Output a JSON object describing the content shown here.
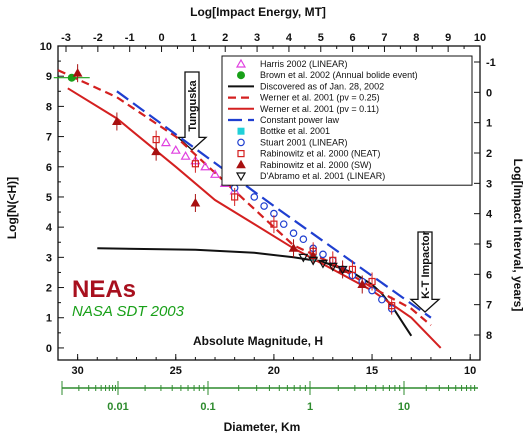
{
  "chart_data": {
    "type": "scatter",
    "title": "Log[Impact Energy, MT]",
    "xlabel": "Absolute Magnitude, H",
    "ylabel": "Log[N(<H)]",
    "ylabel_right": "Log[Impact Interval, years]",
    "xlabel_bottom": "Diameter, Km",
    "annotation_main": "NEAs",
    "annotation_sub": "NASA SDT 2003",
    "arrow_labels": [
      "Tunguska",
      "K-T Impactor"
    ],
    "xlim": [
      31,
      9.5
    ],
    "ylim": [
      -0.4,
      10
    ],
    "x_ticks": [
      "30",
      "25",
      "20",
      "15",
      "10"
    ],
    "y_ticks": [
      "0",
      "1",
      "2",
      "3",
      "4",
      "5",
      "6",
      "7",
      "8",
      "9",
      "10"
    ],
    "top_ticks": [
      "-3",
      "-2",
      "-1",
      "0",
      "1",
      "2",
      "3",
      "4",
      "5",
      "6",
      "7",
      "8",
      "9",
      "10"
    ],
    "right_ticks": [
      "-1",
      "0",
      "1",
      "2",
      "3",
      "4",
      "5",
      "6",
      "7",
      "8"
    ],
    "diameter_ticks": [
      "0.01",
      "0.1",
      "1",
      "10"
    ],
    "colors": {
      "green_axis": "#2e8b2e",
      "red": "#d42020",
      "blue": "#1f3fd0",
      "neas": "#a8101e",
      "magenta": "#e040e0",
      "green_point": "#19a019",
      "cyan": "#20d0d8"
    },
    "series": [
      {
        "name": "Harris 2002 (LINEAR)",
        "marker": "triangle-open",
        "color": "#e040e0",
        "x": [
          25.5,
          25,
          24.5,
          24,
          23.5,
          23,
          22.5,
          22
        ],
        "y": [
          6.8,
          6.55,
          6.35,
          6.2,
          6.0,
          5.75,
          5.45,
          5.2
        ]
      },
      {
        "name": "Brown et al. 2002 (Annual bolide event)",
        "marker": "circle-filled",
        "color": "#19a019",
        "x": [
          30.3
        ],
        "y": [
          8.95
        ]
      },
      {
        "name": "Discovered as of Jan. 28, 2002",
        "style": "line-solid",
        "color": "#111111",
        "x": [
          29,
          24,
          21,
          19,
          17.5,
          16,
          15,
          14.5,
          13.8,
          13.3,
          13
        ],
        "y": [
          3.3,
          3.25,
          3.15,
          3.0,
          2.85,
          2.5,
          2.1,
          1.8,
          1.2,
          0.7,
          0.4
        ]
      },
      {
        "name": "Werner et al. 2001 (pv = 0.25)",
        "style": "line-dashed",
        "color": "#d42020",
        "x": [
          31,
          28,
          25,
          23,
          21,
          19,
          17,
          15,
          13,
          12
        ],
        "y": [
          9.2,
          8.3,
          7.0,
          5.8,
          4.6,
          3.4,
          2.8,
          2.0,
          1.3,
          0.75
        ]
      },
      {
        "name": "Werner et al. 2001 (pv = 0.11)",
        "style": "line-solid",
        "color": "#d42020",
        "x": [
          30.5,
          28,
          25,
          23,
          21,
          19,
          17,
          15,
          13,
          11.5
        ],
        "y": [
          8.6,
          7.6,
          6.0,
          4.9,
          4.1,
          3.3,
          2.6,
          1.9,
          1.0,
          0.0
        ]
      },
      {
        "name": "Constant power law",
        "style": "line-longdash",
        "color": "#1f3fd0",
        "x": [
          28,
          24,
          20,
          16,
          12
        ],
        "y": [
          8.5,
          6.6,
          4.7,
          2.85,
          1.0
        ]
      },
      {
        "name": "Bottke et al. 2001",
        "marker": "square-filled",
        "color": "#20d0d8",
        "x": [
          18
        ],
        "y": [
          3.0
        ]
      },
      {
        "name": "Stuart 2001 (LINEAR)",
        "marker": "circle-open",
        "color": "#1f3fd0",
        "x": [
          22,
          21,
          20.5,
          20,
          19.5,
          19,
          18.5,
          18,
          17.5,
          17,
          16.5,
          16,
          15.5,
          15,
          14.5,
          14
        ],
        "y": [
          5.3,
          5.0,
          4.7,
          4.45,
          4.1,
          3.8,
          3.6,
          3.3,
          3.1,
          2.9,
          2.6,
          2.4,
          2.2,
          1.9,
          1.6,
          1.3
        ]
      },
      {
        "name": "Rabinowitz et al. 2000 (NEAT)",
        "marker": "square-open",
        "color": "#d42020",
        "x": [
          26,
          24,
          22,
          20,
          18,
          17,
          16,
          15,
          14
        ],
        "y": [
          6.9,
          6.1,
          5.0,
          4.1,
          3.2,
          2.9,
          2.6,
          2.2,
          1.4
        ]
      },
      {
        "name": "Rabinowitz et al. 2000 (SW)",
        "marker": "triangle-filled",
        "color": "#a81010",
        "x": [
          30,
          28,
          26,
          24,
          19,
          18,
          16.5,
          15.5
        ],
        "y": [
          9.1,
          7.5,
          6.5,
          4.8,
          3.3,
          3.05,
          2.6,
          2.1
        ]
      },
      {
        "name": "D'Abramo et al. 2001 (LINEAR)",
        "marker": "triangle-down-open",
        "color": "#111111",
        "x": [
          18.5,
          18,
          17.5,
          17,
          16.5
        ],
        "y": [
          3.0,
          2.9,
          2.8,
          2.7,
          2.6
        ]
      }
    ],
    "legend_position": "top-right",
    "grid": false
  }
}
